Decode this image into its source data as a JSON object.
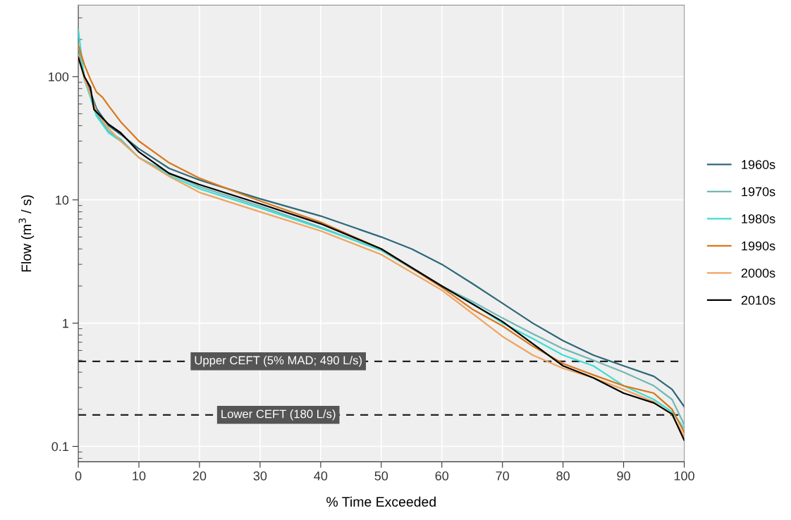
{
  "chart_data": {
    "type": "line",
    "xlabel": "% Time Exceeded",
    "ylabel": "Flow (m$^{3}$ / s)",
    "xlim": [
      0,
      100
    ],
    "xticks": [
      0,
      10,
      20,
      30,
      40,
      50,
      60,
      70,
      80,
      90,
      100
    ],
    "ylim": [
      0.075,
      380
    ],
    "yticks": [
      0.1,
      1,
      10,
      100
    ],
    "log": "y",
    "grid": true,
    "legend": "right",
    "line_style": "solid",
    "marker": "none",
    "ref_lines": [
      {
        "axis": "y",
        "value": 0.49,
        "label": "Upper CEFT (5% MAD; 490 L/s)",
        "color": "#222222",
        "line_style": "dashed"
      },
      {
        "axis": "y",
        "value": 0.18,
        "label": "Lower CEFT (180 L/s)",
        "color": "#222222",
        "line_style": "dashed"
      }
    ],
    "series": [
      {
        "name": "1960s",
        "color": "#2e6878",
        "x": [
          0,
          1,
          2,
          3,
          5,
          7,
          10,
          15,
          20,
          30,
          40,
          50,
          55,
          60,
          65,
          70,
          75,
          80,
          85,
          90,
          95,
          98,
          100
        ],
        "values": [
          170,
          100,
          75,
          55,
          40,
          34,
          26,
          18,
          14.5,
          10.2,
          7.4,
          5.0,
          4.0,
          3.0,
          2.1,
          1.45,
          1.0,
          0.72,
          0.55,
          0.45,
          0.37,
          0.29,
          0.21
        ]
      },
      {
        "name": "1970s",
        "color": "#72b8b4",
        "x": [
          0,
          1,
          2,
          3,
          5,
          7,
          10,
          15,
          20,
          30,
          40,
          50,
          60,
          65,
          70,
          75,
          80,
          85,
          90,
          95,
          98,
          100
        ],
        "values": [
          180,
          95,
          70,
          50,
          36,
          31,
          22,
          16.5,
          12.8,
          8.9,
          6.0,
          3.9,
          2.0,
          1.5,
          1.1,
          0.82,
          0.62,
          0.5,
          0.4,
          0.31,
          0.24,
          0.15
        ]
      },
      {
        "name": "1980s",
        "color": "#3fdcd4",
        "x": [
          0,
          1,
          2,
          3,
          5,
          7,
          10,
          15,
          20,
          30,
          40,
          50,
          60,
          65,
          70,
          75,
          80,
          85,
          88,
          90,
          95,
          98,
          100
        ],
        "values": [
          240,
          95,
          68,
          48,
          35,
          30,
          22,
          15.8,
          12.3,
          8.6,
          5.9,
          3.9,
          2.0,
          1.45,
          1.0,
          0.75,
          0.55,
          0.45,
          0.36,
          0.31,
          0.24,
          0.19,
          0.14
        ]
      },
      {
        "name": "1990s",
        "color": "#d9781c",
        "x": [
          0,
          1,
          2,
          3,
          4,
          5,
          7,
          10,
          15,
          20,
          30,
          40,
          50,
          60,
          65,
          70,
          75,
          80,
          85,
          90,
          95,
          98,
          100
        ],
        "values": [
          180,
          125,
          95,
          75,
          68,
          58,
          43,
          30,
          20,
          15,
          9.8,
          6.6,
          4.0,
          1.95,
          1.3,
          0.95,
          0.65,
          0.47,
          0.38,
          0.31,
          0.27,
          0.2,
          0.13
        ]
      },
      {
        "name": "2000s",
        "color": "#f0a460",
        "x": [
          0,
          1,
          2,
          3,
          5,
          7,
          10,
          15,
          20,
          30,
          40,
          50,
          60,
          65,
          70,
          75,
          80,
          85,
          90,
          95,
          98,
          100
        ],
        "values": [
          150,
          96,
          72,
          52,
          38,
          30,
          22,
          15.5,
          11.5,
          8.0,
          5.6,
          3.6,
          1.85,
          1.2,
          0.78,
          0.55,
          0.43,
          0.36,
          0.29,
          0.23,
          0.18,
          0.12
        ]
      },
      {
        "name": "2010s",
        "color": "#000000",
        "x": [
          0,
          1,
          2,
          2.6,
          5,
          7,
          10,
          15,
          20,
          30,
          40,
          50,
          60,
          70,
          80,
          85,
          90,
          95,
          98,
          100
        ],
        "values": [
          143,
          100,
          82,
          54,
          41,
          35,
          24.5,
          16.4,
          13.3,
          9.3,
          6.4,
          4.0,
          2.0,
          1.03,
          0.45,
          0.36,
          0.27,
          0.225,
          0.183,
          0.112
        ]
      }
    ]
  }
}
